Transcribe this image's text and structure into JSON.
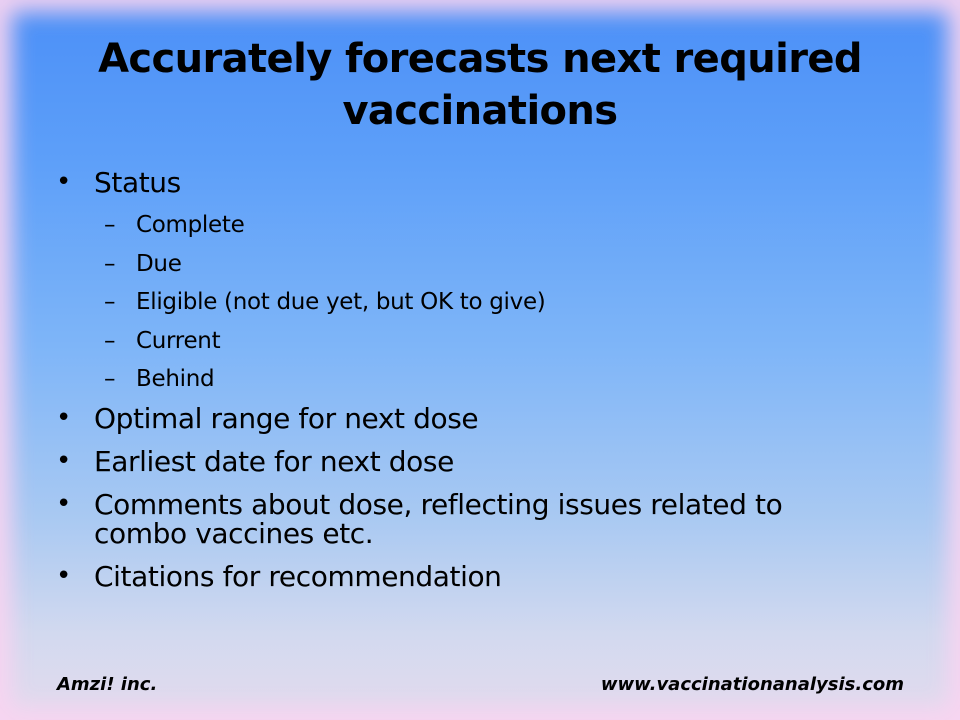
{
  "slide": {
    "title": "Accurately forecasts next required vaccinations",
    "bullets": [
      {
        "text": "Status",
        "sub": [
          "Complete",
          "Due",
          "Eligible (not due yet, but OK to give)",
          "Current",
          "Behind"
        ]
      },
      {
        "text": "Optimal range for next dose"
      },
      {
        "text": "Earliest date for next dose"
      },
      {
        "text": "Comments about dose, reflecting issues related to combo vaccines etc."
      },
      {
        "text": "Citations for recommendation"
      }
    ],
    "bullet_glyph": "•",
    "dash_glyph": "–"
  },
  "footer": {
    "left": "Amzi! inc.",
    "right": "www.vaccinationanalysis.com"
  },
  "colors": {
    "background_top": "#4b8ff7",
    "background_bottom": "#e4dbee",
    "edge_glow": "#f8d4f0",
    "text": "#000000"
  }
}
